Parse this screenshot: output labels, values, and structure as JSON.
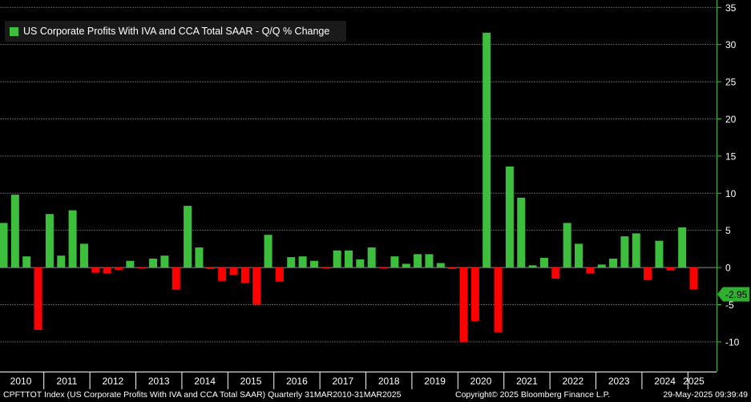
{
  "chart_data": {
    "type": "bar",
    "title": "",
    "legend": {
      "label": "US Corporate Profits With IVA and CCA Total SAAR - Q/Q % Change",
      "placement": "top-left"
    },
    "xlabel": "",
    "ylabel": "",
    "ylim": [
      -14,
      36
    ],
    "y_ticks": [
      "-10",
      "-5",
      "0",
      "5",
      "10",
      "15",
      "20",
      "25",
      "30",
      "35"
    ],
    "y_axis_side": "right",
    "grid": true,
    "year_labels": [
      "2010",
      "2011",
      "2012",
      "2013",
      "2014",
      "2015",
      "2016",
      "2017",
      "2018",
      "2019",
      "2020",
      "2021",
      "2022",
      "2023",
      "2024",
      "2025"
    ],
    "categories": [
      "2010-Q1",
      "2010-Q2",
      "2010-Q3",
      "2010-Q4",
      "2011-Q1",
      "2011-Q2",
      "2011-Q3",
      "2011-Q4",
      "2012-Q1",
      "2012-Q2",
      "2012-Q3",
      "2012-Q4",
      "2013-Q1",
      "2013-Q2",
      "2013-Q3",
      "2013-Q4",
      "2014-Q1",
      "2014-Q2",
      "2014-Q3",
      "2014-Q4",
      "2015-Q1",
      "2015-Q2",
      "2015-Q3",
      "2015-Q4",
      "2016-Q1",
      "2016-Q2",
      "2016-Q3",
      "2016-Q4",
      "2017-Q1",
      "2017-Q2",
      "2017-Q3",
      "2017-Q4",
      "2018-Q1",
      "2018-Q2",
      "2018-Q3",
      "2018-Q4",
      "2019-Q1",
      "2019-Q2",
      "2019-Q3",
      "2019-Q4",
      "2020-Q1",
      "2020-Q2",
      "2020-Q3",
      "2020-Q4",
      "2021-Q1",
      "2021-Q2",
      "2021-Q3",
      "2021-Q4",
      "2022-Q1",
      "2022-Q2",
      "2022-Q3",
      "2022-Q4",
      "2023-Q1",
      "2023-Q2",
      "2023-Q3",
      "2023-Q4",
      "2024-Q1",
      "2024-Q2",
      "2024-Q3",
      "2024-Q4",
      "2025-Q1"
    ],
    "values": [
      6.0,
      9.8,
      1.5,
      -8.4,
      7.2,
      1.6,
      7.7,
      3.2,
      -0.7,
      -0.8,
      -0.3,
      0.9,
      -0.1,
      1.2,
      1.6,
      -3.0,
      8.3,
      2.7,
      -0.2,
      -1.8,
      -1.0,
      -2.1,
      -5.0,
      4.4,
      -1.9,
      1.4,
      1.5,
      0.9,
      -0.1,
      2.3,
      2.3,
      1.1,
      2.7,
      -0.1,
      1.5,
      0.5,
      1.8,
      1.8,
      0.6,
      -0.2,
      -10.0,
      -7.2,
      31.6,
      -8.7,
      13.6,
      9.4,
      0.3,
      1.3,
      -1.5,
      6.0,
      3.2,
      -0.8,
      0.4,
      1.2,
      4.2,
      4.6,
      -1.7,
      3.6,
      -0.4,
      5.4,
      -2.95
    ],
    "last_value_label": "-2.95",
    "colors": {
      "positive": "#3dbf3d",
      "negative": "#ff0000",
      "grid": "#5a5a5a",
      "axis": "#3dbf3d",
      "background": "#000000",
      "last_value_bg": "#2fb12f"
    }
  },
  "footer": {
    "left": "CPFTTOT Index (US Corporate Profits With IVA and CCA Total SAAR)  Quarterly 31MAR2010-31MAR2025",
    "middle": "Copyright© 2025 Bloomberg Finance L.P.",
    "right": "29-May-2025 09:39:49"
  }
}
